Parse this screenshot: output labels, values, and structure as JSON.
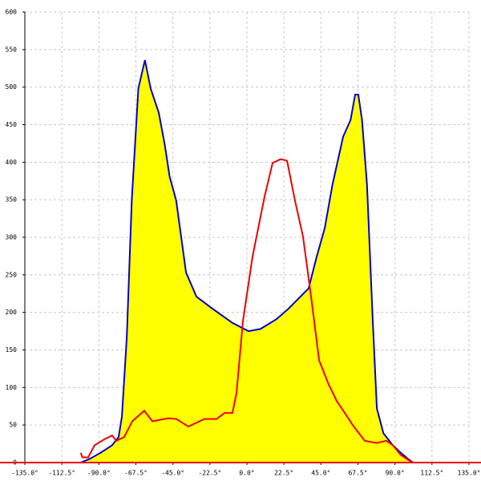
{
  "chart_data": {
    "type": "line",
    "xlim": [
      -135,
      135
    ],
    "ylim": [
      0,
      600
    ],
    "xticks": [
      {
        "value": -135,
        "label": "-135.0°"
      },
      {
        "value": -112.5,
        "label": "-112.5°"
      },
      {
        "value": -90,
        "label": "-90.0°"
      },
      {
        "value": -67.5,
        "label": "-67.5°"
      },
      {
        "value": -45,
        "label": "-45.0°"
      },
      {
        "value": -22.5,
        "label": "-22.5°"
      },
      {
        "value": 0,
        "label": "0.0°"
      },
      {
        "value": 22.5,
        "label": "22.5°"
      },
      {
        "value": 45,
        "label": "45.0°"
      },
      {
        "value": 67.5,
        "label": "67.5°"
      },
      {
        "value": 90,
        "label": "90.0°"
      },
      {
        "value": 112.5,
        "label": "112.5°"
      },
      {
        "value": 135,
        "label": "135.0°"
      }
    ],
    "yticks": [
      0,
      50,
      100,
      150,
      200,
      250,
      300,
      350,
      400,
      450,
      500,
      550,
      600
    ],
    "grid": true,
    "series": [
      {
        "color": "#0000cc",
        "fill": "#ffff00",
        "x": [
          -101,
          -95.5,
          -89,
          -82,
          -78,
          -76,
          -73,
          -70,
          -66,
          -62,
          -58.5,
          -53.6,
          -50,
          -47,
          -43,
          -37,
          -30.7,
          -21,
          -8.8,
          1,
          8.3,
          18,
          25.3,
          37.5,
          42.4,
          47.3,
          52,
          58.5,
          63,
          65.8,
          67.7,
          70,
          73,
          76.5,
          79,
          83,
          88.7,
          93.6,
          98.4,
          101
        ],
        "values": [
          0,
          5,
          13,
          23,
          34,
          61,
          168,
          349,
          498,
          536,
          498,
          466,
          424,
          381,
          349,
          253,
          221,
          205,
          186,
          175,
          178,
          191,
          205,
          232,
          274,
          312,
          370,
          434,
          456,
          490,
          490,
          456,
          370,
          189,
          72,
          39,
          23,
          13,
          4,
          0
        ]
      },
      {
        "color": "#ee0000",
        "x": [
          -101,
          -100,
          -96.5,
          -92.6,
          -86.7,
          -82,
          -79.4,
          -74.6,
          -69.7,
          -62.4,
          -57.5,
          -47.8,
          -42.9,
          -35.6,
          -25.8,
          -18.5,
          -13.6,
          -8.8,
          -6.3,
          -2.4,
          3.4,
          10.7,
          15.6,
          20.5,
          24.4,
          29.2,
          34.1,
          39,
          43.9,
          49.7,
          54.6,
          59.5,
          64.3,
          71.6,
          78.9,
          84.8,
          88.7,
          93.6,
          98.4,
          101
        ],
        "values": [
          13,
          7,
          7,
          23,
          31,
          36,
          29,
          34,
          55,
          69,
          55,
          59,
          58,
          48,
          58,
          58,
          66,
          66,
          93,
          189,
          274,
          354,
          399,
          404,
          402,
          349,
          301,
          221,
          136,
          104,
          82,
          66,
          50,
          29,
          26,
          29,
          23,
          10,
          3,
          0
        ]
      }
    ]
  }
}
